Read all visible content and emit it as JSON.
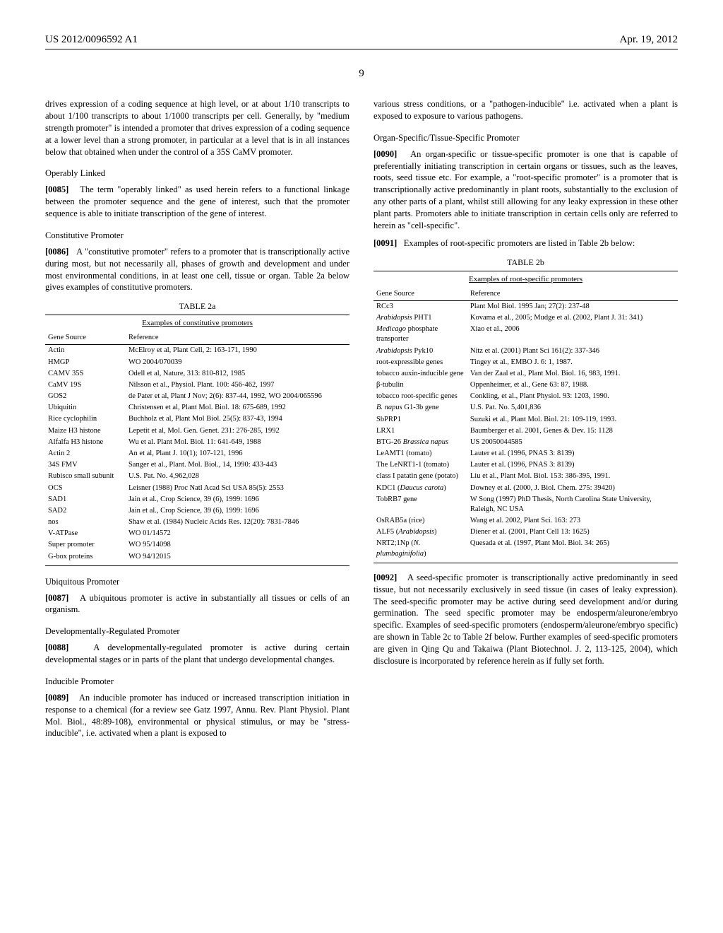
{
  "header": {
    "left": "US 2012/0096592 A1",
    "right": "Apr. 19, 2012"
  },
  "page_number": "9",
  "left_column": {
    "intro_para": "drives expression of a coding sequence at high level, or at about 1/10 transcripts to about 1/100 transcripts to about 1/1000 transcripts per cell. Generally, by \"medium strength promoter\" is intended a promoter that drives expression of a coding sequence at a lower level than a strong promoter, in particular at a level that is in all instances below that obtained when under the control of a 35S CaMV promoter.",
    "operably_linked": {
      "heading": "Operably Linked",
      "num": "[0085]",
      "text": "The term \"operably linked\" as used herein refers to a functional linkage between the promoter sequence and the gene of interest, such that the promoter sequence is able to initiate transcription of the gene of interest."
    },
    "constitutive": {
      "heading": "Constitutive Promoter",
      "num": "[0086]",
      "text": "A \"constitutive promoter\" refers to a promoter that is transcriptionally active during most, but not necessarily all, phases of growth and development and under most environmental conditions, in at least one cell, tissue or organ. Table 2a below gives examples of constitutive promoters."
    },
    "table2a": {
      "caption": "TABLE 2a",
      "subcaption": "Examples of constitutive promoters",
      "headers": [
        "Gene Source",
        "Reference"
      ],
      "rows": [
        [
          "Actin",
          "McElroy et al, Plant Cell, 2: 163-171, 1990"
        ],
        [
          "HMGP",
          "WO 2004/070039"
        ],
        [
          "CAMV 35S",
          "Odell et al, Nature, 313: 810-812, 1985"
        ],
        [
          "CaMV 19S",
          "Nilsson et al., Physiol. Plant. 100: 456-462, 1997"
        ],
        [
          "GOS2",
          "de Pater et al, Plant J Nov; 2(6): 837-44, 1992, WO 2004/065596"
        ],
        [
          "Ubiquitin",
          "Christensen et al, Plant Mol. Biol. 18: 675-689, 1992"
        ],
        [
          "Rice cyclophilin",
          "Buchholz et al, Plant Mol Biol. 25(5): 837-43, 1994"
        ],
        [
          "Maize H3 histone",
          "Lepetit et al, Mol. Gen. Genet. 231: 276-285, 1992"
        ],
        [
          "Alfalfa H3 histone",
          "Wu et al. Plant Mol. Biol. 11: 641-649, 1988"
        ],
        [
          "Actin 2",
          "An et al, Plant J. 10(1); 107-121, 1996"
        ],
        [
          "34S FMV",
          "Sanger et al., Plant. Mol. Biol., 14, 1990: 433-443"
        ],
        [
          "Rubisco small subunit",
          "U.S. Pat. No. 4,962,028"
        ],
        [
          "OCS",
          "Leisner (1988) Proc Natl Acad Sci USA 85(5): 2553"
        ],
        [
          "SAD1",
          "Jain et al., Crop Science, 39 (6), 1999: 1696"
        ],
        [
          "SAD2",
          "Jain et al., Crop Science, 39 (6), 1999: 1696"
        ],
        [
          "nos",
          "Shaw et al. (1984) Nucleic Acids Res. 12(20): 7831-7846"
        ],
        [
          "V-ATPase",
          "WO 01/14572"
        ],
        [
          "Super promoter",
          "WO 95/14098"
        ],
        [
          "G-box proteins",
          "WO 94/12015"
        ]
      ]
    },
    "ubiquitous": {
      "heading": "Ubiquitous Promoter",
      "num": "[0087]",
      "text": "A ubiquitous promoter is active in substantially all tissues or cells of an organism."
    },
    "dev_reg": {
      "heading": "Developmentally-Regulated Promoter",
      "num": "[0088]",
      "text": "A developmentally-regulated promoter is active during certain developmental stages or in parts of the plant that undergo developmental changes."
    },
    "inducible": {
      "heading": "Inducible Promoter",
      "num": "[0089]",
      "text": "An inducible promoter has induced or increased transcription initiation in response to a chemical (for a review see Gatz 1997, Annu. Rev. Plant Physiol. Plant Mol. Biol., 48:89-108), environmental or physical stimulus, or may be \"stress-inducible\", i.e. activated when a plant is exposed to"
    }
  },
  "right_column": {
    "cont_para": "various stress conditions, or a \"pathogen-inducible\" i.e. activated when a plant is exposed to exposure to various pathogens.",
    "organ_specific": {
      "heading": "Organ-Specific/Tissue-Specific Promoter",
      "num1": "[0090]",
      "text1": "An organ-specific or tissue-specific promoter is one that is capable of preferentially initiating transcription in certain organs or tissues, such as the leaves, roots, seed tissue etc. For example, a \"root-specific promoter\" is a promoter that is transcriptionally active predominantly in plant roots, substantially to the exclusion of any other parts of a plant, whilst still allowing for any leaky expression in these other plant parts. Promoters able to initiate transcription in certain cells only are referred to herein as \"cell-specific\".",
      "num2": "[0091]",
      "text2": "Examples of root-specific promoters are listed in Table 2b below:"
    },
    "table2b": {
      "caption": "TABLE 2b",
      "subcaption": "Examples of root-specific promoters",
      "headers": [
        "Gene Source",
        "Reference"
      ],
      "rows": [
        [
          "RCc3",
          "Plant Mol Biol. 1995 Jan; 27(2): 237-48"
        ],
        [
          "<i>Arabidopsis</i> PHT1",
          "Kovama et al., 2005; Mudge et al. (2002, Plant J. 31: 341)"
        ],
        [
          "<i>Medicago</i> phosphate transporter",
          "Xiao et al., 2006"
        ],
        [
          "<i>Arabidopsis</i> Pyk10",
          "Nitz et al. (2001) Plant Sci 161(2): 337-346"
        ],
        [
          "root-expressible genes",
          "Tingey et al., EMBO J. 6: 1, 1987."
        ],
        [
          "tobacco auxin-inducible gene",
          "Van der Zaal et al., Plant Mol. Biol. 16, 983, 1991."
        ],
        [
          "β-tubulin",
          "Oppenheimer, et al., Gene 63: 87, 1988."
        ],
        [
          "tobacco root-specific genes",
          "Conkling, et al., Plant Physiol. 93: 1203, 1990."
        ],
        [
          "<i>B. napus</i> G1-3b gene",
          "U.S. Pat. No. 5,401,836"
        ],
        [
          "SbPRP1",
          "Suzuki et al., Plant Mol. Biol. 21: 109-119, 1993."
        ],
        [
          "LRX1",
          "Baumberger et al. 2001, Genes & Dev. 15: 1128"
        ],
        [
          "BTG-26 <i>Brassica napus</i>",
          "US 20050044585"
        ],
        [
          "LeAMT1 (tomato)",
          "Lauter et al. (1996, PNAS 3: 8139)"
        ],
        [
          "The LeNRT1-1 (tomato)",
          "Lauter et al. (1996, PNAS 3: 8139)"
        ],
        [
          "class I patatin gene (potato)",
          "Liu et al., Plant Mol. Biol. 153: 386-395, 1991."
        ],
        [
          "KDC1 (<i>Daucus carota</i>)",
          "Downey et al. (2000, J. Biol. Chem. 275: 39420)"
        ],
        [
          "TobRB7 gene",
          "W Song (1997) PhD Thesis, North Carolina State University, Raleigh, NC USA"
        ],
        [
          "OsRAB5a (rice)",
          "Wang et al. 2002, Plant Sci. 163: 273"
        ],
        [
          "ALF5 (<i>Arabidopsis</i>)",
          "Diener et al. (2001, Plant Cell 13: 1625)"
        ],
        [
          "NRT2;1Np (<i>N. plumbaginifolia</i>)",
          "Quesada et al. (1997, Plant Mol. Biol. 34: 265)"
        ]
      ]
    },
    "seed_specific": {
      "num": "[0092]",
      "text": "A seed-specific promoter is transcriptionally active predominantly in seed tissue, but not necessarily exclusively in seed tissue (in cases of leaky expression). The seed-specific promoter may be active during seed development and/or during germination. The seed specific promoter may be endosperm/aleurone/embryo specific. Examples of seed-specific promoters (endosperm/aleurone/embryo specific) are shown in Table 2c to Table 2f below. Further examples of seed-specific promoters are given in Qing Qu and Takaiwa (Plant Biotechnol. J. 2, 113-125, 2004), which disclosure is incorporated by reference herein as if fully set forth."
    }
  }
}
